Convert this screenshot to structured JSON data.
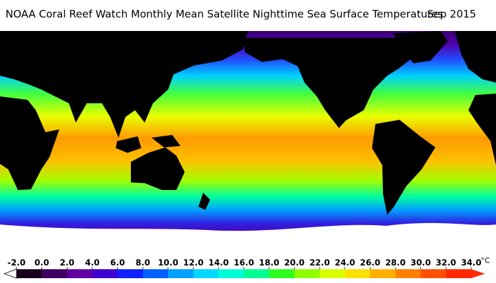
{
  "header": {
    "title": "NOAA Coral Reef Watch Monthly Mean Satellite Nighttime Sea Surface Temperatures",
    "date": "Sep 2015"
  },
  "colorbar": {
    "unit": "°C",
    "ticks": [
      {
        "value": -2,
        "label": "-2.0"
      },
      {
        "value": 0,
        "label": "0.0"
      },
      {
        "value": 2,
        "label": "2.0"
      },
      {
        "value": 4,
        "label": "4.0"
      },
      {
        "value": 6,
        "label": "6.0"
      },
      {
        "value": 8,
        "label": "8.0"
      },
      {
        "value": 10,
        "label": "10.0"
      },
      {
        "value": 12,
        "label": "12.0"
      },
      {
        "value": 14,
        "label": "14.0"
      },
      {
        "value": 16,
        "label": "16.0"
      },
      {
        "value": 18,
        "label": "18.0"
      },
      {
        "value": 20,
        "label": "20.0"
      },
      {
        "value": 22,
        "label": "22.0"
      },
      {
        "value": 24,
        "label": "24.0"
      },
      {
        "value": 26,
        "label": "26.0"
      },
      {
        "value": 28,
        "label": "28.0"
      },
      {
        "value": 30,
        "label": "30.0"
      },
      {
        "value": 32,
        "label": "32.0"
      },
      {
        "value": 34,
        "label": "34.0"
      }
    ],
    "colors": [
      "#1a0020",
      "#400060",
      "#6000a0",
      "#4000d0",
      "#1020ff",
      "#0060ff",
      "#00a0ff",
      "#00d8ff",
      "#00ffd8",
      "#00ff90",
      "#30ff20",
      "#90ff00",
      "#d8ff00",
      "#ffe000",
      "#ffb000",
      "#ff8000",
      "#ff5000",
      "#ff2800"
    ]
  }
}
